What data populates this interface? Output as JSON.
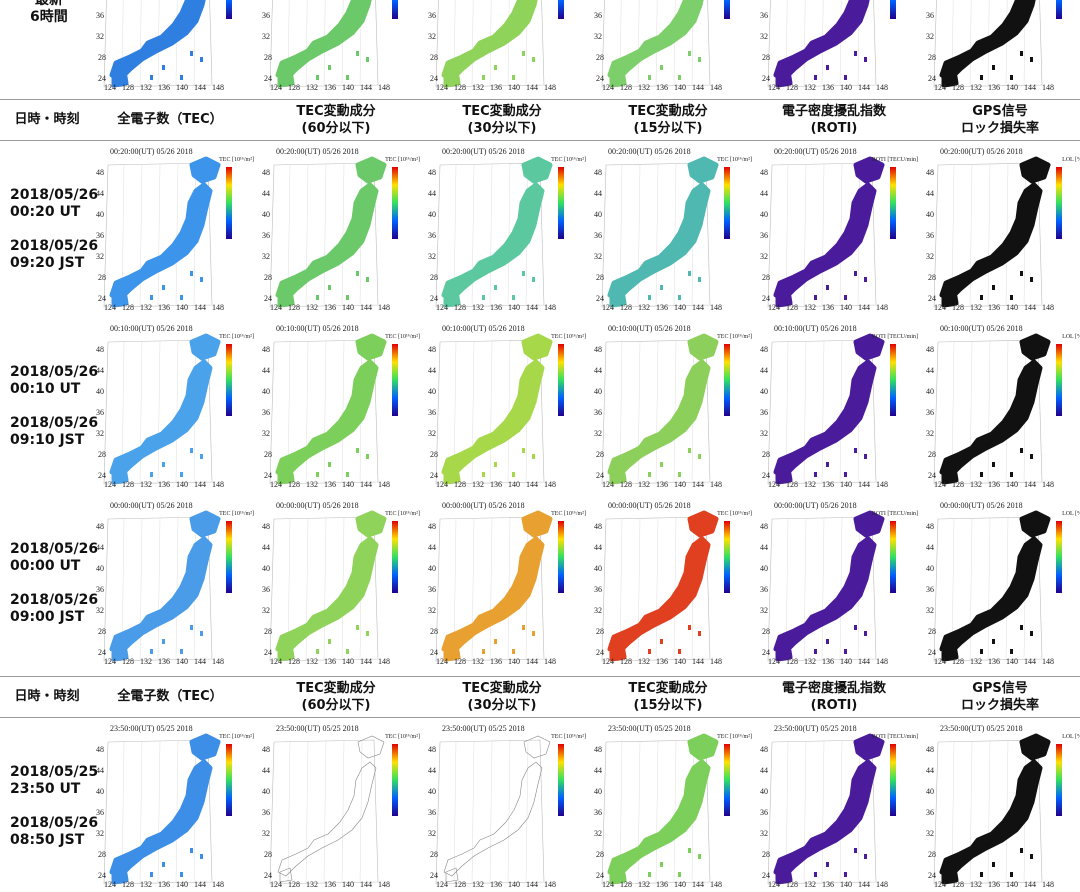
{
  "top_row": {
    "label_lines": [
      "最新",
      "6時間"
    ],
    "fills": [
      "#2f7fe0",
      "#6cc96a",
      "#8fd35a",
      "#7ccf6a",
      "#4a1c9c",
      "#111111"
    ]
  },
  "header": {
    "cells": [
      [
        "日時・時刻"
      ],
      [
        "全電子数（TEC）"
      ],
      [
        "TEC変動成分",
        "(60分以下)"
      ],
      [
        "TEC変動成分",
        "(30分以下)"
      ],
      [
        "TEC変動成分",
        "(15分以下)"
      ],
      [
        "電子密度擾乱指数",
        "(ROTI)"
      ],
      [
        "GPS信号",
        "ロック損失率"
      ]
    ]
  },
  "units": [
    "TEC [10¹⁶/m²]",
    "TEC [10¹⁶/m²]",
    "TEC [10¹⁶/m²]",
    "TEC [10¹⁶/m²]",
    "ROTI [TECU/min]",
    "LOL [%]"
  ],
  "map_axes": {
    "lat": [
      "48",
      "44",
      "40",
      "36",
      "32",
      "28",
      "24"
    ],
    "lon": [
      "124",
      "128",
      "132",
      "136",
      "140",
      "144",
      "148"
    ]
  },
  "rows": [
    {
      "ut_date": "2018/05/26",
      "ut_time": "00:20 UT",
      "jst_date": "2018/05/26",
      "jst_time": "09:20 JST",
      "caption": "00:20:00(UT)  05/26 2018",
      "fills": [
        "#3c95ea",
        "#6cc96a",
        "#5cc8a0",
        "#4fb8b0",
        "#4a1c9c",
        "#111111"
      ]
    },
    {
      "ut_date": "2018/05/26",
      "ut_time": "00:10 UT",
      "jst_date": "2018/05/26",
      "jst_time": "09:10 JST",
      "caption": "00:10:00(UT)  05/26 2018",
      "fills": [
        "#4aa2ea",
        "#7ccf5a",
        "#a6d84a",
        "#8ccf5a",
        "#4a1c9c",
        "#111111"
      ]
    },
    {
      "ut_date": "2018/05/26",
      "ut_time": "00:00 UT",
      "jst_date": "2018/05/26",
      "jst_time": "09:00 JST",
      "caption": "00:00:00(UT)  05/26 2018",
      "fills": [
        "#4a9ce8",
        "#8fd35a",
        "#e8a030",
        "#e04020",
        "#4a1c9c",
        "#111111"
      ]
    },
    {
      "ut_date": "2018/05/25",
      "ut_time": "23:50 UT",
      "jst_date": "2018/05/26",
      "jst_time": "08:50 JST",
      "caption": "23:50:00(UT)  05/25 2018",
      "fills": [
        "#3c8ee6",
        "#ffffff",
        "#ffffff",
        "#7ccf5a",
        "#4a1c9c",
        "#111111"
      ]
    }
  ]
}
